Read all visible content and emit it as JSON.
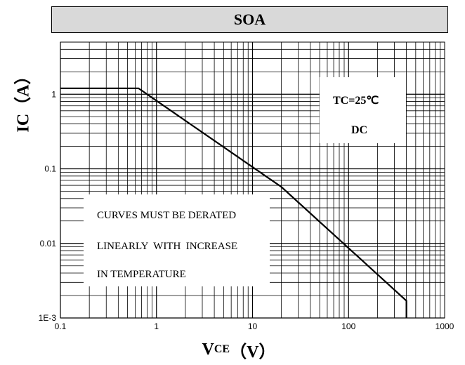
{
  "title": "SOA",
  "chart_data": {
    "type": "line",
    "title": "SOA",
    "xlabel": {
      "main": "V",
      "sub": "CE",
      "unit": "（V）"
    },
    "ylabel": "IC（A）",
    "x_scale": "log",
    "y_scale": "log",
    "xlim": [
      0.1,
      1000
    ],
    "ylim": [
      0.001,
      5
    ],
    "x_tick_values": [
      0.1,
      1,
      10,
      100,
      1000
    ],
    "x_tick_labels": [
      "0.1",
      "1",
      "10",
      "100",
      "1000"
    ],
    "y_tick_values": [
      0.001,
      0.01,
      0.1,
      1
    ],
    "y_tick_labels": [
      "1E-3",
      "0.01",
      "0.1",
      "1"
    ],
    "grid": true,
    "series": [
      {
        "x": [
          0.1,
          0.65,
          20,
          400,
          400
        ],
        "y": [
          1.2,
          1.2,
          0.057,
          0.0017,
          0.001
        ]
      }
    ],
    "annotations": {
      "condition_lines": [
        "TC=25℃",
        "DC"
      ],
      "note_lines": [
        "CURVES MUST BE DERATED",
        "LINEARLY  WITH  INCREASE",
        "IN TEMPERATURE"
      ]
    }
  }
}
